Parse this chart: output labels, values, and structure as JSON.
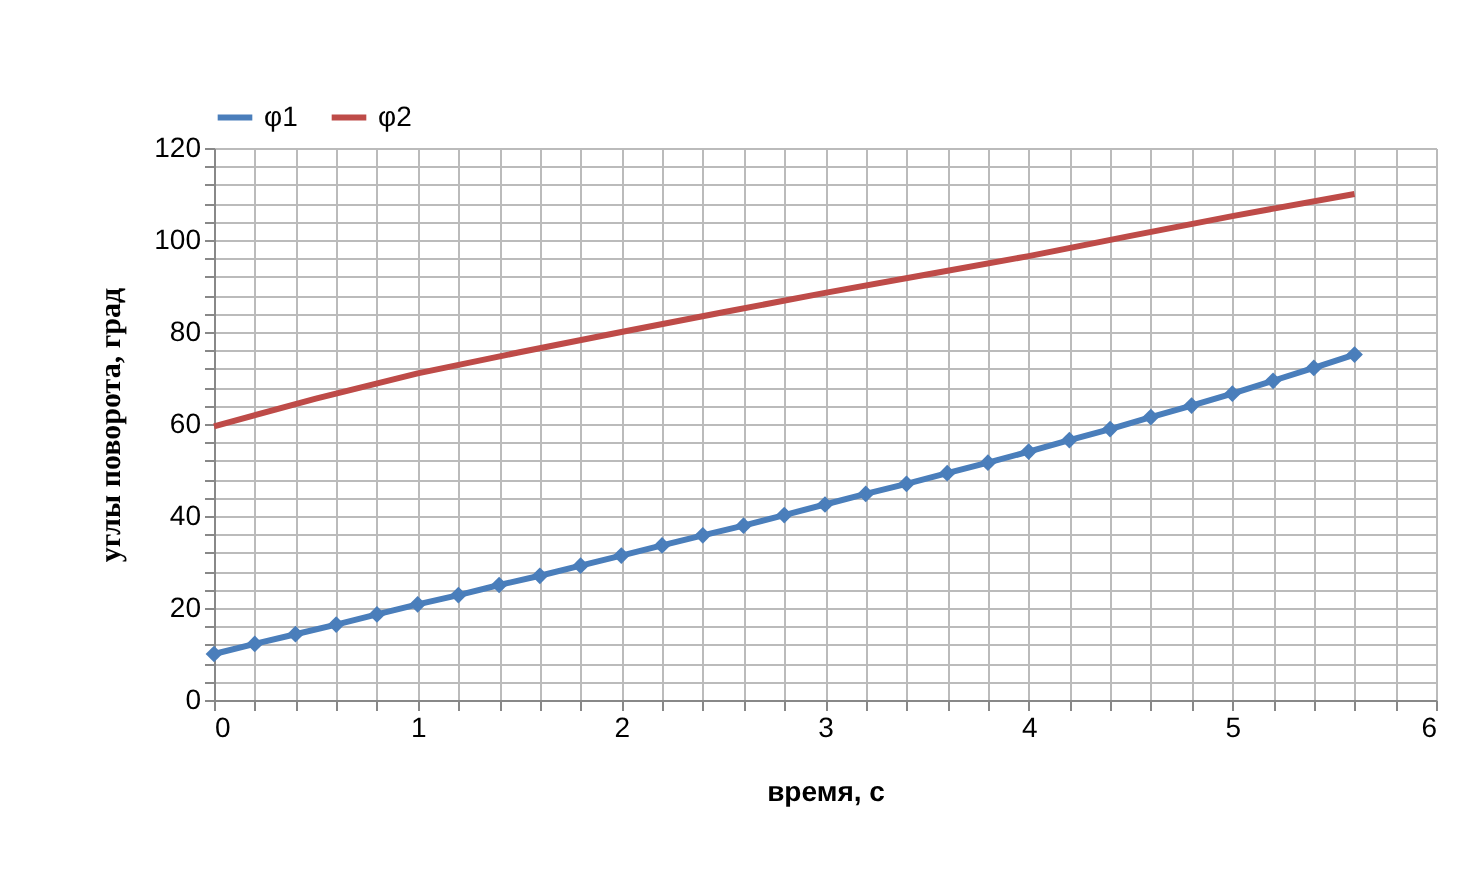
{
  "chart_data": {
    "type": "line",
    "xlabel": "время, с",
    "ylabel": "углы поворота, град",
    "legend": "top",
    "grid": true,
    "xlim": [
      0,
      6
    ],
    "ylim": [
      0,
      120
    ],
    "xticks": [
      0,
      {
        "value": 0.2,
        "label": null
      },
      {
        "value": 0.4,
        "label": null
      },
      {
        "value": 0.6,
        "label": null
      },
      {
        "value": 0.8,
        "label": null
      },
      1,
      {
        "value": 1.2,
        "label": null
      },
      {
        "value": 1.4,
        "label": null
      },
      {
        "value": 1.6,
        "label": null
      },
      {
        "value": 1.8,
        "label": null
      },
      2,
      {
        "value": 2.2,
        "label": null
      },
      {
        "value": 2.4,
        "label": null
      },
      {
        "value": 2.6,
        "label": null
      },
      {
        "value": 2.8,
        "label": null
      },
      3,
      {
        "value": 3.2,
        "label": null
      },
      {
        "value": 3.4,
        "label": null
      },
      {
        "value": 3.6,
        "label": null
      },
      {
        "value": 3.8,
        "label": null
      },
      4,
      {
        "value": 4.2,
        "label": null
      },
      {
        "value": 4.4,
        "label": null
      },
      {
        "value": 4.6,
        "label": null
      },
      {
        "value": 4.8,
        "label": null
      },
      5,
      {
        "value": 5.2,
        "label": null
      },
      {
        "value": 5.4,
        "label": null
      },
      {
        "value": 5.6,
        "label": null
      },
      {
        "value": 5.8,
        "label": null
      },
      6
    ],
    "yticks": [
      0,
      {
        "value": 4,
        "label": null
      },
      {
        "value": 8,
        "label": null
      },
      {
        "value": 12,
        "label": null
      },
      {
        "value": 16,
        "label": null
      },
      20,
      {
        "value": 24,
        "label": null
      },
      {
        "value": 28,
        "label": null
      },
      {
        "value": 32,
        "label": null
      },
      {
        "value": 36,
        "label": null
      },
      40,
      {
        "value": 44,
        "label": null
      },
      {
        "value": 48,
        "label": null
      },
      {
        "value": 52,
        "label": null
      },
      {
        "value": 56,
        "label": null
      },
      60,
      {
        "value": 64,
        "label": null
      },
      {
        "value": 68,
        "label": null
      },
      {
        "value": 72,
        "label": null
      },
      {
        "value": 76,
        "label": null
      },
      80,
      {
        "value": 84,
        "label": null
      },
      {
        "value": 88,
        "label": null
      },
      {
        "value": 92,
        "label": null
      },
      {
        "value": 96,
        "label": null
      },
      100,
      {
        "value": 104,
        "label": null
      },
      {
        "value": 108,
        "label": null
      },
      {
        "value": 112,
        "label": null
      },
      {
        "value": 116,
        "label": null
      },
      120
    ],
    "series": [
      {
        "name": "φ1",
        "color": "#4a7ebb",
        "marker": "diamond",
        "x": [
          0,
          0.2,
          0.4,
          0.6,
          0.8,
          1,
          1.2,
          1.4,
          1.6,
          1.8,
          2,
          2.2,
          2.4,
          2.6,
          2.8,
          3,
          3.2,
          3.4,
          3.6,
          3.8,
          4,
          4.2,
          4.4,
          4.6,
          4.8,
          5,
          5.2,
          5.4,
          5.6
        ],
        "values": [
          10,
          12.2,
          14.3,
          16.4,
          18.6,
          20.8,
          22.8,
          25,
          27,
          29.2,
          31.4,
          33.6,
          35.8,
          37.9,
          40.2,
          42.5,
          44.8,
          47,
          49.3,
          51.6,
          54,
          56.5,
          58.9,
          61.5,
          64,
          66.6,
          69.4,
          72.2,
          75.1
        ]
      },
      {
        "name": "φ2",
        "color": "#be4b48",
        "marker": "none",
        "x": [
          0,
          0.5,
          1,
          1.5,
          2,
          2.5,
          3,
          3.5,
          4,
          4.5,
          5,
          5.6
        ],
        "values": [
          59.5,
          65.5,
          71,
          75.6,
          80,
          84.3,
          88.5,
          92.5,
          96.5,
          100.9,
          105.2,
          110
        ]
      }
    ]
  }
}
